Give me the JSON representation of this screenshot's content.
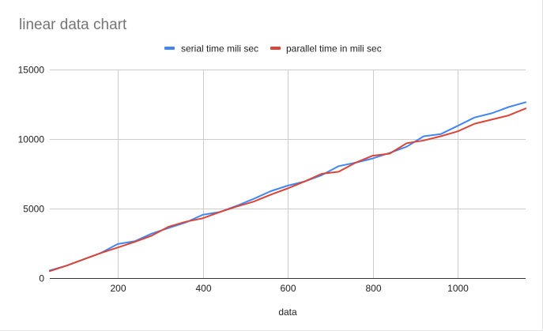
{
  "chart_data": {
    "type": "line",
    "title": "linear data chart",
    "xlabel": "data",
    "ylabel": "",
    "xlim": [
      40,
      1160
    ],
    "ylim": [
      0,
      15000
    ],
    "x_ticks": [
      200,
      400,
      600,
      800,
      1000
    ],
    "y_ticks": [
      0,
      5000,
      10000,
      15000
    ],
    "x_tick_labels": [
      "200",
      "400",
      "600",
      "800",
      "1000"
    ],
    "y_tick_labels": [
      "0",
      "5000",
      "10000",
      "15000"
    ],
    "grid": true,
    "legend_position": "top",
    "x": [
      40,
      80,
      120,
      160,
      200,
      240,
      280,
      320,
      360,
      400,
      440,
      480,
      520,
      560,
      600,
      640,
      680,
      720,
      760,
      800,
      840,
      880,
      920,
      960,
      1000,
      1040,
      1080,
      1120,
      1160
    ],
    "series": [
      {
        "name": "serial time mili sec",
        "color": "#4285f4",
        "values": [
          550,
          900,
          1350,
          1800,
          2450,
          2650,
          3200,
          3600,
          4000,
          4550,
          4750,
          5200,
          5700,
          6250,
          6650,
          6950,
          7400,
          8050,
          8300,
          8600,
          9000,
          9450,
          10200,
          10350,
          10950,
          11550,
          11850,
          12300,
          12650
        ]
      },
      {
        "name": "parallel time in mili sec",
        "color": "#db4437",
        "values": [
          500,
          900,
          1350,
          1800,
          2200,
          2600,
          3050,
          3700,
          4050,
          4300,
          4750,
          5150,
          5500,
          6000,
          6450,
          6950,
          7500,
          7650,
          8300,
          8800,
          8950,
          9700,
          9900,
          10200,
          10550,
          11100,
          11400,
          11700,
          12200
        ]
      }
    ]
  }
}
